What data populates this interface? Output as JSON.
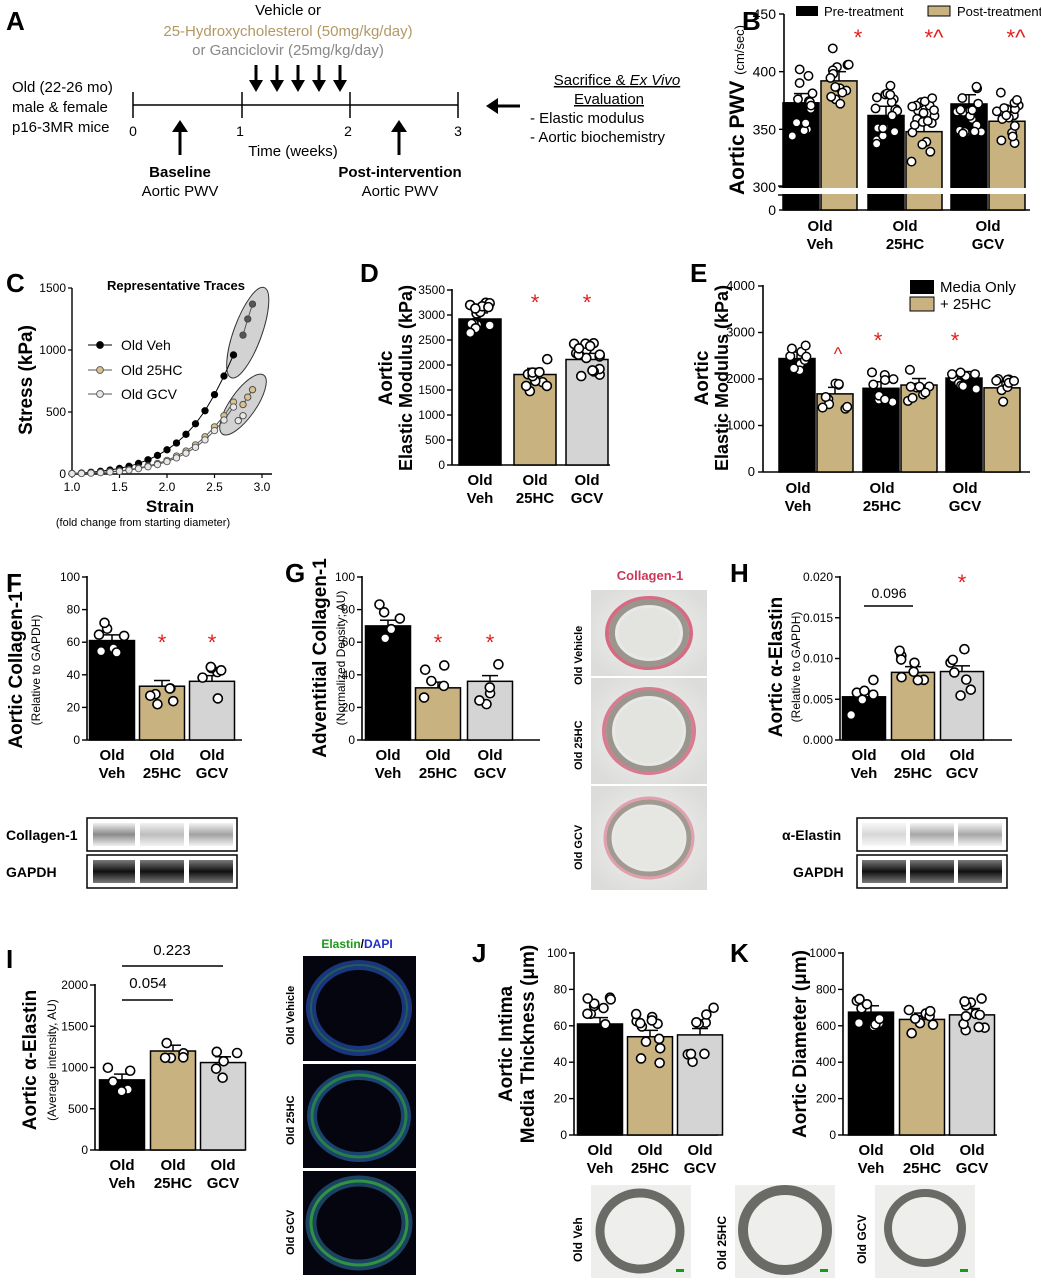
{
  "colors": {
    "veh": "#000000",
    "hc": "#c8b27f",
    "gcv": "#d4d4d4",
    "star": "#e0201b",
    "pink": "#d0365a",
    "green": "#1a9a1a",
    "blue": "#1f2fd0"
  },
  "panel_letters": [
    "A",
    "B",
    "C",
    "D",
    "E",
    "F",
    "G",
    "H",
    "I",
    "J",
    "K"
  ],
  "panelA": {
    "vehicle": "Vehicle or",
    "hc": "25-Hydroxycholesterol (50mg/kg/day)",
    "gcv": "or Ganciclovir (25mg/kg/day)",
    "mice": [
      "Old (22-26 mo)",
      "male & female",
      "p16-3MR mice"
    ],
    "ticks": [
      "0",
      "1",
      "2",
      "3"
    ],
    "time": "Time (weeks)",
    "baseline": "Baseline",
    "baseline_pwv": "Aortic PWV",
    "post": "Post-intervention",
    "post_pwv": "Aortic PWV",
    "sacrifice": "Sacrifice & ",
    "exvivo": "Ex Vivo",
    "evaluation": "Evaluation",
    "items": [
      "-   Elastic modulus",
      "-   Aortic biochemistry"
    ]
  },
  "cat3": [
    [
      "Old",
      "Veh"
    ],
    [
      "Old",
      "25HC"
    ],
    [
      "Old",
      "GCV"
    ]
  ],
  "chart_data": [
    {
      "panel": "B",
      "type": "bar",
      "title": "",
      "ylabel": "Aortic PWV",
      "ylabel_unit": "(cm/sec)",
      "ylim": [
        300,
        450
      ],
      "axis_break": true,
      "yticks": [
        "450",
        "400",
        "350",
        "300",
        "0"
      ],
      "legend": [
        "Pre-treatment",
        "Post-treatment"
      ],
      "categories": [
        "Old Veh",
        "Old 25HC",
        "Old GCV"
      ],
      "series": [
        {
          "name": "Pre-treatment",
          "values": [
            373,
            362,
            372
          ]
        },
        {
          "name": "Post-treatment",
          "values": [
            392,
            348,
            357
          ]
        }
      ],
      "sig": [
        "*",
        "*^",
        "*^"
      ]
    },
    {
      "panel": "C",
      "type": "line",
      "title": "Representative Traces",
      "xlabel": "Strain",
      "xlabel_sub": "(fold change from starting diameter)",
      "ylabel": "Stress (kPa)",
      "xlim": [
        1.0,
        3.0
      ],
      "ylim": [
        0,
        1500
      ],
      "xticks": [
        "1.0",
        "1.5",
        "2.0",
        "2.5",
        "3.0"
      ],
      "yticks": [
        "0",
        "500",
        "1000",
        "1500"
      ],
      "legend": [
        "Old Veh",
        "Old 25HC",
        "Old GCV"
      ],
      "x": [
        1.0,
        1.1,
        1.2,
        1.3,
        1.4,
        1.5,
        1.6,
        1.7,
        1.8,
        1.9,
        2.0,
        2.1,
        2.2,
        2.3,
        2.4,
        2.5,
        2.6,
        2.7
      ],
      "series": [
        {
          "name": "Old Veh",
          "values": [
            5,
            8,
            14,
            22,
            32,
            45,
            62,
            85,
            115,
            150,
            195,
            250,
            320,
            405,
            510,
            640,
            790,
            960
          ]
        },
        {
          "name": "Old 25HC",
          "values": [
            3,
            5,
            8,
            12,
            18,
            25,
            35,
            48,
            65,
            85,
            110,
            145,
            185,
            235,
            300,
            380,
            470,
            580
          ]
        },
        {
          "name": "Old GCV",
          "values": [
            3,
            4,
            7,
            11,
            16,
            22,
            31,
            43,
            58,
            76,
            100,
            130,
            168,
            215,
            275,
            350,
            435,
            540
          ]
        }
      ],
      "extra_points": {
        "Old Veh": [
          [
            2.8,
            1120
          ],
          [
            2.85,
            1250
          ],
          [
            2.9,
            1370
          ]
        ],
        "Old 25HC": [
          [
            2.8,
            560
          ],
          [
            2.85,
            620
          ],
          [
            2.9,
            680
          ]
        ],
        "Old GCV": [
          [
            2.75,
            430
          ],
          [
            2.8,
            470
          ]
        ]
      }
    },
    {
      "panel": "D",
      "type": "bar",
      "ylabel": "Aortic",
      "ylabel2": "Elastic Modulus (kPa)",
      "ylim": [
        0,
        3500
      ],
      "yticks": [
        "0",
        "500",
        "1000",
        "1500",
        "2000",
        "2500",
        "3000",
        "3500"
      ],
      "categories": [
        "Old Veh",
        "Old 25HC",
        "Old GCV"
      ],
      "values": [
        2920,
        1810,
        2110
      ],
      "sig": [
        "",
        "*",
        "*"
      ]
    },
    {
      "panel": "E",
      "type": "bar",
      "ylabel": "Aortic",
      "ylabel2": "Elastic Modulus (kPa)",
      "ylim": [
        0,
        4000
      ],
      "yticks": [
        "0",
        "1000",
        "2000",
        "3000",
        "4000"
      ],
      "legend": [
        "Media Only",
        "+ 25HC"
      ],
      "categories": [
        "Old Veh",
        "Old 25HC",
        "Old GCV"
      ],
      "series": [
        {
          "name": "Media Only",
          "values": [
            2440,
            1800,
            2020
          ]
        },
        {
          "name": "+ 25HC",
          "values": [
            1680,
            1870,
            1810
          ]
        }
      ],
      "sig": [
        "^",
        "*",
        "*"
      ]
    },
    {
      "panel": "F",
      "type": "bar",
      "ylabel": "Aortic Collagen-1",
      "ylabel2": "(Relative to GAPDH)",
      "ylim": [
        0,
        100
      ],
      "yticks": [
        "0",
        "20",
        "40",
        "60",
        "80",
        "100"
      ],
      "categories": [
        "Old Veh",
        "Old 25HC",
        "Old GCV"
      ],
      "values": [
        61,
        33,
        36
      ],
      "sig": [
        "",
        "*",
        "*"
      ],
      "blots": [
        "Collagen-1",
        "GAPDH"
      ]
    },
    {
      "panel": "G",
      "type": "bar",
      "ylabel": "Adventitial Collagen-1",
      "ylabel2": "(Normalized Density; AU)",
      "ylim": [
        0,
        100
      ],
      "yticks": [
        "0",
        "20",
        "40",
        "60",
        "80",
        "100"
      ],
      "categories": [
        "Old Veh",
        "Old 25HC",
        "Old GCV"
      ],
      "values": [
        70,
        32,
        36
      ],
      "sig": [
        "",
        "*",
        "*"
      ]
    },
    {
      "panel": "H",
      "type": "bar",
      "ylabel": "Aortic α-Elastin",
      "ylabel2": "(Relative to GAPDH)",
      "ylim": [
        0,
        0.02
      ],
      "yticks": [
        "0.000",
        "0.005",
        "0.010",
        "0.015",
        "0.020"
      ],
      "categories": [
        "Old Veh",
        "Old 25HC",
        "Old GCV"
      ],
      "values": [
        0.0053,
        0.0083,
        0.0084
      ],
      "sig": [
        "",
        "",
        "*"
      ],
      "bracket": "0.096",
      "blots": [
        "α-Elastin",
        "GAPDH"
      ]
    },
    {
      "panel": "I",
      "type": "bar",
      "ylabel": "Aortic α-Elastin",
      "ylabel2": "(Average intensity, AU)",
      "ylim": [
        0,
        2000
      ],
      "yticks": [
        "0",
        "500",
        "1000",
        "1500",
        "2000"
      ],
      "categories": [
        "Old Veh",
        "Old 25HC",
        "Old GCV"
      ],
      "values": [
        850,
        1200,
        1060
      ],
      "brackets": [
        "0.054",
        "0.223"
      ]
    },
    {
      "panel": "J",
      "type": "bar",
      "ylabel": "Aortic Intima",
      "ylabel2": "Media Thickness (μm)",
      "ylim": [
        0,
        100
      ],
      "yticks": [
        "0",
        "20",
        "40",
        "60",
        "80",
        "100"
      ],
      "categories": [
        "Old Veh",
        "Old 25HC",
        "Old GCV"
      ],
      "values": [
        61,
        54,
        55
      ]
    },
    {
      "panel": "K",
      "type": "bar",
      "ylabel": "Aortic Diameter (μm)",
      "ylim": [
        0,
        1000
      ],
      "yticks": [
        "0",
        "200",
        "400",
        "600",
        "800",
        "1000"
      ],
      "categories": [
        "Old Veh",
        "Old 25HC",
        "Old GCV"
      ],
      "values": [
        675,
        635,
        660
      ]
    }
  ],
  "imagesG": {
    "title": "Collagen-1",
    "labels": [
      "Old Vehicle",
      "Old 25HC",
      "Old GCV"
    ]
  },
  "imagesI": {
    "title1": "Elastin",
    "title_sep": "/",
    "title2": "DAPI",
    "labels": [
      "Old Vehicle",
      "Old 25HC",
      "Old GCV"
    ]
  },
  "imagesJK": {
    "labels": [
      "Old Veh",
      "Old 25HC",
      "Old GCV"
    ]
  }
}
